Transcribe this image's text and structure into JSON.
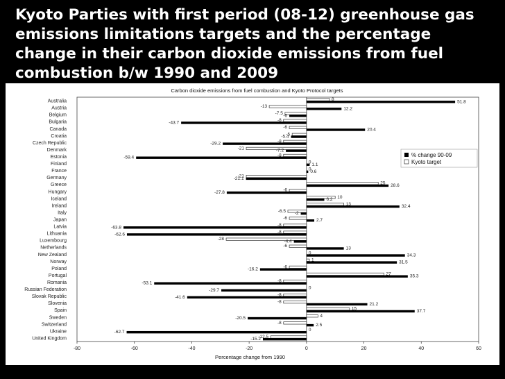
{
  "slide": {
    "title": "Kyoto Parties with first period (08-12) greenhouse gas emissions limitations targets and the percentage change in their carbon dioxide emissions from fuel combustion b/w 1990 and 2009"
  },
  "colors": {
    "background": "#000000",
    "panel": "#ffffff",
    "change_bar": "#000000",
    "target_bar": "#ffffff",
    "target_border": "#333333"
  },
  "chart_data": {
    "type": "bar",
    "orientation": "horizontal",
    "title": "Carbon dioxide emissions from fuel combustion and Kyoto Protocol targets",
    "xlabel": "Percentage change from 1990",
    "ylabel": "",
    "xlim": [
      -80,
      60
    ],
    "xticks": [
      -80,
      -60,
      -40,
      -20,
      0,
      20,
      40,
      60
    ],
    "grid": false,
    "legend_position": "right",
    "categories": [
      "Australia",
      "Austria",
      "Belgium",
      "Bulgaria",
      "Canada",
      "Croatia",
      "Czech Republic",
      "Denmark",
      "Estonia",
      "Finland",
      "France",
      "Germany",
      "Greece",
      "Hungary",
      "Iceland",
      "Ireland",
      "Italy",
      "Japan",
      "Latvia",
      "Lithuania",
      "Luxembourg",
      "Netherlands",
      "New Zealand",
      "Norway",
      "Poland",
      "Portugal",
      "Romania",
      "Russian Federation",
      "Slovak Republic",
      "Slovenia",
      "Spain",
      "Sweden",
      "Switzerland",
      "Ukraine",
      "United Kingdom"
    ],
    "series": [
      {
        "name": "% change 90-09",
        "values": [
          51.8,
          12.2,
          -6,
          -43.7,
          20.4,
          -5.4,
          -29.2,
          -7.2,
          -59.4,
          1.1,
          0.6,
          -21.1,
          28.6,
          -27.8,
          6.2,
          32.4,
          -2,
          2.7,
          -63.8,
          -62.6,
          -4.4,
          13,
          34.3,
          31.5,
          -16.2,
          35.3,
          -53.1,
          -29.7,
          -41.6,
          21.2,
          37.7,
          -20.5,
          2.5,
          -62.7,
          -15.2
        ],
        "labels": [
          "51.8",
          "12.2",
          "-6",
          "-43.7",
          "20.4",
          "-5.4",
          "-29.2",
          "-7.2",
          "-59.4",
          "1.1",
          "0.6",
          "-21.1",
          "28.6",
          "-27.8",
          "6.2",
          "32.4",
          "-2",
          "2.7",
          "-63.8",
          "-62.6",
          "-4.4",
          "13",
          "34.3",
          "31.5",
          "-16.2",
          "35.3",
          "-53.1",
          "-29.7",
          "-41.6",
          "21.2",
          "37.7",
          "-20.5",
          "2.5",
          "-62.7",
          "-15.2"
        ]
      },
      {
        "name": "Kyoto target",
        "values": [
          8,
          -13,
          -7.5,
          -8,
          -6,
          -5,
          -8,
          -21,
          -8,
          0,
          0,
          -21,
          25,
          -6,
          10,
          13,
          -6.5,
          -6,
          -8,
          -8,
          -28,
          -6,
          0,
          1,
          -6,
          27,
          -8,
          0,
          -8,
          -8,
          15,
          4,
          -8,
          0,
          -12.5
        ],
        "labels": [
          "8",
          "-13",
          "-7.5",
          "-8",
          "-6",
          "-5",
          "-8",
          "-21",
          "-8",
          "0",
          "0",
          "-21",
          "25",
          "-6",
          "10",
          "13",
          "-6.5",
          "-6",
          "-8",
          "-8",
          "-28",
          "-6",
          "0",
          "1",
          "-6",
          "27",
          "-8",
          "0",
          "-8",
          "-8",
          "15",
          "4",
          "-8",
          "0",
          "-12.5"
        ]
      }
    ]
  }
}
